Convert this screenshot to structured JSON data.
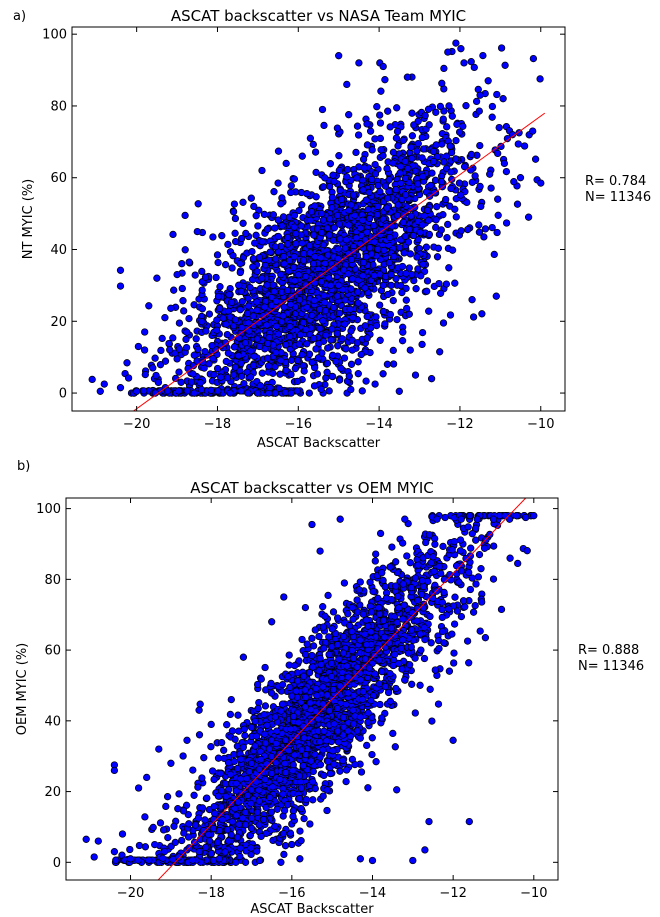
{
  "chart_data": [
    {
      "panel_label": "a)",
      "type": "scatter",
      "title": "ASCAT backscatter vs NASA Team MYIC",
      "xlabel": "ASCAT Backscatter",
      "ylabel": "NT MYIC (%)",
      "xlim": [
        -21.6,
        -9.4
      ],
      "ylim": [
        -5,
        102
      ],
      "xticks": [
        -20,
        -18,
        -16,
        -14,
        -12,
        -10
      ],
      "yticks": [
        0,
        20,
        40,
        60,
        80,
        100
      ],
      "grid": false,
      "marker_color": "#0000ff",
      "marker_edge": "#000000",
      "fit_line": {
        "color": "#ff0000",
        "x": [
          -20.2,
          -9.9
        ],
        "y": [
          -6,
          78
        ]
      },
      "stats": {
        "r": "R= 0.784",
        "n": "N= 11346"
      },
      "n_points": 11346,
      "points": [
        [
          -21.1,
          3.8
        ],
        [
          -20.9,
          0.5
        ],
        [
          -20.8,
          2.5
        ],
        [
          -20.4,
          34.2
        ],
        [
          -20.4,
          29.8
        ],
        [
          -20.4,
          1.5
        ],
        [
          -20.2,
          4.2
        ],
        [
          -20.0,
          0.5
        ],
        [
          -19.8,
          17.0
        ],
        [
          -19.7,
          24.3
        ],
        [
          -19.6,
          7.0
        ],
        [
          -19.5,
          32.0
        ],
        [
          -19.3,
          21.0
        ],
        [
          -19.2,
          13.8
        ],
        [
          -19.1,
          44.2
        ],
        [
          -19.0,
          33.0
        ],
        [
          -18.9,
          3.0
        ],
        [
          -18.8,
          49.5
        ],
        [
          -18.7,
          36.5
        ],
        [
          -18.5,
          45.0
        ],
        [
          -18.4,
          1.0
        ],
        [
          -18.2,
          22.0
        ],
        [
          -18.0,
          38.5
        ],
        [
          -17.8,
          14.0
        ],
        [
          -17.6,
          50.5
        ],
        [
          -17.3,
          44.5
        ],
        [
          -17.1,
          52.0
        ],
        [
          -16.9,
          32.0
        ],
        [
          -16.7,
          1.5
        ],
        [
          -16.5,
          58.5
        ],
        [
          -16.3,
          64.0
        ],
        [
          -16.1,
          38.0
        ],
        [
          -15.9,
          66.0
        ],
        [
          -15.7,
          71.0
        ],
        [
          -15.6,
          2.0
        ],
        [
          -15.4,
          79.0
        ],
        [
          -15.2,
          30.0
        ],
        [
          -15.0,
          94.0
        ],
        [
          -14.8,
          86.0
        ],
        [
          -14.7,
          1.0
        ],
        [
          -14.5,
          92.0
        ],
        [
          -14.3,
          75.0
        ],
        [
          -14.1,
          2.5
        ],
        [
          -13.9,
          91.0
        ],
        [
          -13.7,
          33.0
        ],
        [
          -13.5,
          0.5
        ],
        [
          -13.3,
          88.0
        ],
        [
          -13.1,
          5.0
        ],
        [
          -12.9,
          68.0
        ],
        [
          -12.7,
          4.0
        ],
        [
          -12.5,
          11.5
        ],
        [
          -12.3,
          95.0
        ],
        [
          -12.1,
          97.5
        ],
        [
          -11.9,
          92.0
        ],
        [
          -11.7,
          26.0
        ],
        [
          -11.5,
          83.0
        ],
        [
          -11.3,
          87.0
        ],
        [
          -11.1,
          27.0
        ],
        [
          -10.9,
          64.0
        ],
        [
          -10.7,
          72.0
        ],
        [
          -10.5,
          60.0
        ],
        [
          -10.3,
          49.0
        ],
        [
          -10.2,
          73.0
        ],
        [
          -10.0,
          58.5
        ]
      ]
    },
    {
      "panel_label": "b)",
      "type": "scatter",
      "title": "ASCAT backscatter vs OEM MYIC",
      "xlabel": "ASCAT Backscatter",
      "ylabel": "OEM MYIC (%)",
      "xlim": [
        -21.6,
        -9.4
      ],
      "ylim": [
        -5,
        103
      ],
      "xticks": [
        -20,
        -18,
        -16,
        -14,
        -12,
        -10
      ],
      "yticks": [
        0,
        20,
        40,
        60,
        80,
        100
      ],
      "grid": false,
      "marker_color": "#0000ff",
      "marker_edge": "#000000",
      "fit_line": {
        "color": "#ff0000",
        "x": [
          -19.4,
          -10.2
        ],
        "y": [
          -6,
          103
        ]
      },
      "stats": {
        "r": "R= 0.888",
        "n": "N= 11346"
      },
      "n_points": 11346,
      "points": [
        [
          -21.1,
          6.5
        ],
        [
          -20.9,
          1.5
        ],
        [
          -20.8,
          6.0
        ],
        [
          -20.4,
          27.5
        ],
        [
          -20.4,
          26.0
        ],
        [
          -20.4,
          3.0
        ],
        [
          -20.2,
          8.0
        ],
        [
          -20.0,
          1.0
        ],
        [
          -19.8,
          21.0
        ],
        [
          -19.6,
          24.0
        ],
        [
          -19.4,
          5.0
        ],
        [
          -19.3,
          32.0
        ],
        [
          -19.0,
          28.0
        ],
        [
          -18.8,
          1.5
        ],
        [
          -18.6,
          34.5
        ],
        [
          -18.3,
          43.0
        ],
        [
          -18.0,
          39.0
        ],
        [
          -17.8,
          1.0
        ],
        [
          -17.5,
          46.0
        ],
        [
          -17.2,
          58.0
        ],
        [
          -17.0,
          28.0
        ],
        [
          -16.8,
          0.5
        ],
        [
          -16.5,
          68.0
        ],
        [
          -16.2,
          75.0
        ],
        [
          -16.0,
          47.0
        ],
        [
          -15.8,
          1.0
        ],
        [
          -15.5,
          95.5
        ],
        [
          -15.3,
          88.0
        ],
        [
          -15.0,
          66.0
        ],
        [
          -14.8,
          97.0
        ],
        [
          -14.5,
          72.0
        ],
        [
          -14.3,
          1.0
        ],
        [
          -14.0,
          0.5
        ],
        [
          -13.8,
          93.0
        ],
        [
          -13.6,
          48.0
        ],
        [
          -13.4,
          20.5
        ],
        [
          -13.2,
          97.0
        ],
        [
          -13.0,
          0.5
        ],
        [
          -12.8,
          60.0
        ],
        [
          -12.7,
          3.5
        ],
        [
          -12.6,
          11.5
        ],
        [
          -12.4,
          97.0
        ],
        [
          -12.2,
          97.5
        ],
        [
          -12.0,
          34.5
        ],
        [
          -11.8,
          97.0
        ],
        [
          -11.6,
          11.5
        ],
        [
          -11.4,
          97.0
        ],
        [
          -11.2,
          63.5
        ],
        [
          -11.0,
          97.0
        ],
        [
          -10.8,
          71.5
        ],
        [
          -10.6,
          97.0
        ],
        [
          -10.4,
          84.5
        ],
        [
          -10.2,
          97.5
        ],
        [
          -10.0,
          98.0
        ]
      ]
    }
  ]
}
